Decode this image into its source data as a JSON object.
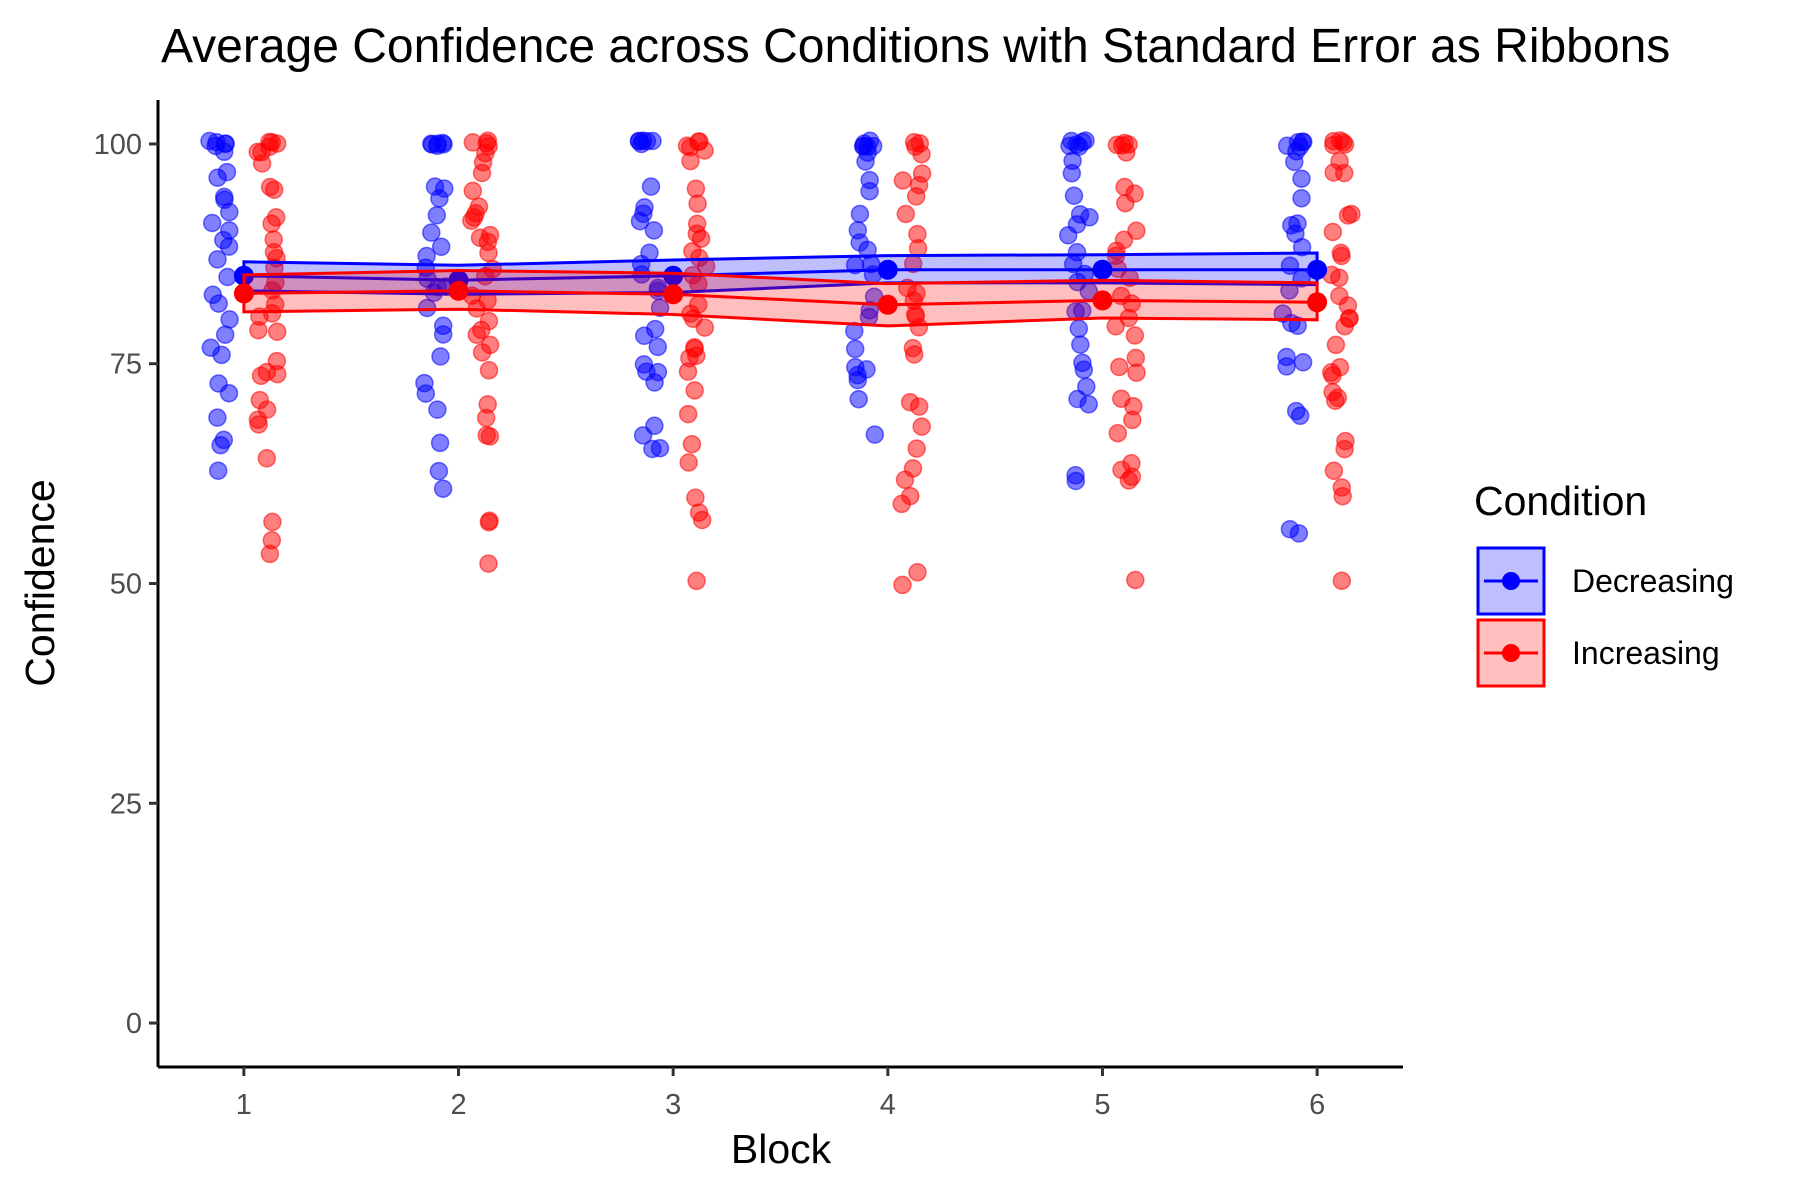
{
  "chart_data": {
    "type": "line",
    "title": "Average Confidence across Conditions with Standard Error as Ribbons",
    "xlabel": "Block",
    "ylabel": "Confidence",
    "x": [
      1,
      2,
      3,
      4,
      5,
      6
    ],
    "xlim": [
      0.6,
      6.4
    ],
    "ylim": [
      -5,
      105
    ],
    "yticks": [
      0,
      25,
      50,
      75,
      100
    ],
    "grid": false,
    "legend": {
      "title": "Condition",
      "position": "right"
    },
    "series": [
      {
        "name": "Decreasing",
        "color": "#0000ff",
        "mean": [
          85.0,
          84.5,
          85.0,
          85.7,
          85.7,
          85.7
        ],
        "se_lower": [
          83.3,
          82.9,
          83.1,
          84.2,
          84.2,
          84.0
        ],
        "se_upper": [
          86.6,
          86.2,
          86.8,
          87.3,
          87.4,
          87.6
        ],
        "points": [
          [
            100,
            100,
            100,
            100,
            100,
            99,
            97,
            96,
            94,
            94,
            92,
            91,
            90,
            89,
            88,
            87,
            85,
            83,
            82,
            80,
            78,
            77,
            76,
            73,
            72,
            69,
            66,
            66,
            63
          ],
          [
            100,
            100,
            100,
            100,
            100,
            100,
            95,
            95,
            94,
            92,
            90,
            88,
            87,
            86,
            85,
            84,
            84,
            83,
            81,
            79,
            78,
            76,
            73,
            72,
            70,
            66,
            63,
            61
          ],
          [
            100,
            100,
            100,
            100,
            100,
            100,
            95,
            93,
            92,
            91,
            90,
            88,
            86,
            85,
            84,
            83,
            81,
            79,
            78,
            77,
            75,
            74,
            74,
            73,
            68,
            67,
            65,
            65
          ],
          [
            100,
            100,
            100,
            100,
            100,
            100,
            99,
            98,
            96,
            95,
            92,
            90,
            89,
            88,
            86,
            86,
            85,
            83,
            81,
            80,
            79,
            77,
            75,
            74,
            74,
            73,
            71,
            67
          ],
          [
            100,
            100,
            100,
            100,
            100,
            100,
            98,
            97,
            94,
            92,
            92,
            91,
            90,
            88,
            86,
            85,
            84,
            83,
            81,
            81,
            79,
            77,
            75,
            74,
            72,
            71,
            70,
            62,
            62
          ],
          [
            100,
            100,
            100,
            100,
            100,
            99,
            98,
            96,
            94,
            91,
            91,
            90,
            88,
            86,
            85,
            83,
            81,
            80,
            79,
            76,
            75,
            75,
            70,
            69,
            56,
            56
          ]
        ]
      },
      {
        "name": "Increasing",
        "color": "#ff0000",
        "mean": [
          83.0,
          83.3,
          82.9,
          81.7,
          82.2,
          82.0
        ],
        "se_lower": [
          80.9,
          81.2,
          80.6,
          79.3,
          80.2,
          80.0
        ],
        "se_upper": [
          85.1,
          85.6,
          85.3,
          84.1,
          84.5,
          84.2
        ],
        "points": [
          [
            100,
            100,
            100,
            100,
            99,
            99,
            98,
            95,
            95,
            92,
            91,
            89,
            88,
            87,
            86,
            84,
            83,
            82,
            81,
            80,
            79,
            79,
            75,
            74,
            74,
            74,
            71,
            70,
            69,
            68,
            64,
            57,
            55,
            53
          ],
          [
            100,
            100,
            100,
            100,
            99,
            98,
            97,
            95,
            93,
            92,
            92,
            91,
            90,
            89,
            89,
            88,
            86,
            85,
            83,
            82,
            81,
            80,
            79,
            78,
            77,
            76,
            74,
            70,
            69,
            67,
            67,
            57,
            57,
            52
          ],
          [
            100,
            100,
            100,
            100,
            99,
            98,
            95,
            93,
            91,
            90,
            89,
            88,
            87,
            86,
            85,
            84,
            82,
            81,
            80,
            79,
            77,
            77,
            76,
            76,
            74,
            72,
            69,
            66,
            64,
            60,
            58,
            57,
            50
          ],
          [
            100,
            100,
            100,
            99,
            97,
            96,
            95,
            94,
            92,
            90,
            88,
            86,
            84,
            83,
            82,
            81,
            80,
            79,
            77,
            76,
            71,
            70,
            68,
            65,
            63,
            62,
            60,
            59,
            51,
            50
          ],
          [
            100,
            100,
            100,
            100,
            99,
            95,
            94,
            93,
            90,
            89,
            88,
            87,
            86,
            85,
            83,
            82,
            80,
            79,
            78,
            76,
            75,
            74,
            71,
            70,
            69,
            67,
            64,
            63,
            62,
            62,
            50
          ],
          [
            100,
            100,
            100,
            100,
            100,
            98,
            97,
            97,
            92,
            92,
            90,
            88,
            87,
            85,
            85,
            83,
            82,
            80,
            80,
            79,
            77,
            75,
            74,
            74,
            72,
            71,
            71,
            66,
            65,
            63,
            61,
            60,
            50
          ]
        ]
      }
    ]
  }
}
